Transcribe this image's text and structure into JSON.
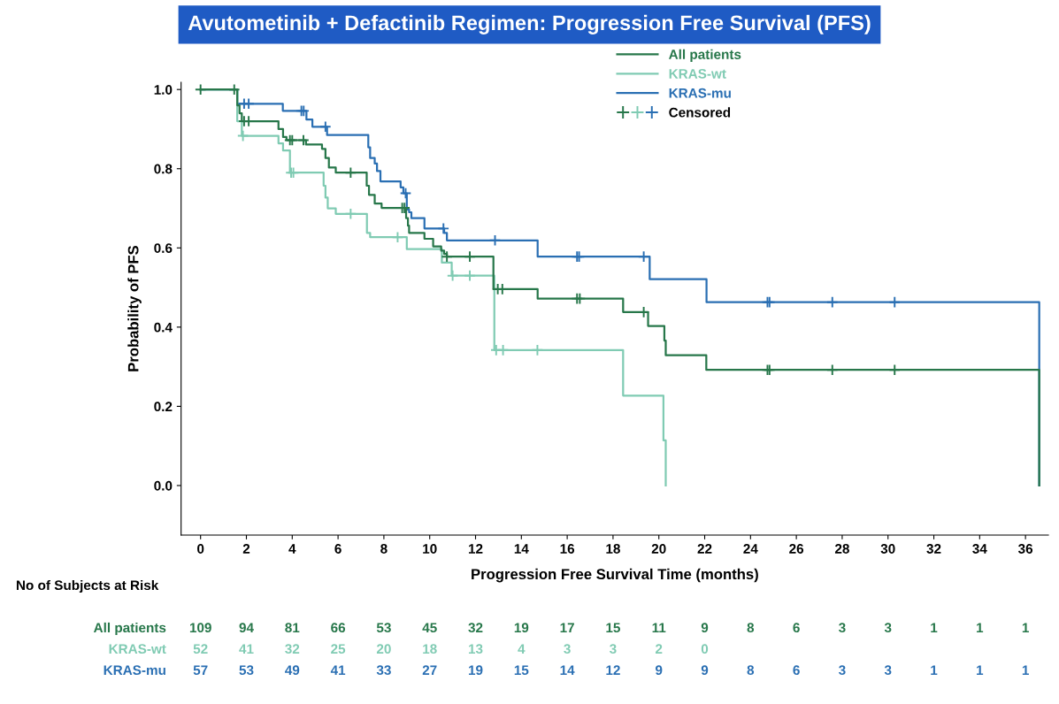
{
  "chart_data": {
    "type": "step",
    "title": "Avutometinib + Defactinib Regimen: Progression Free Survival (PFS)",
    "xlabel": "Progression Free Survival Time (months)",
    "ylabel": "Probability of PFS",
    "xlim": [
      -0.85,
      37
    ],
    "ylim": [
      -0.125,
      1.018
    ],
    "xticks": [
      0,
      2,
      4,
      6,
      8,
      10,
      12,
      14,
      16,
      18,
      20,
      22,
      24,
      26,
      28,
      30,
      32,
      34,
      36
    ],
    "yticks": [
      {
        "value": 0,
        "label": "0.0"
      },
      {
        "value": 0.2,
        "label": "0.2"
      },
      {
        "value": 0.4,
        "label": "0.4"
      },
      {
        "value": 0.6,
        "label": "0.6"
      },
      {
        "value": 0.8,
        "label": "0.8"
      },
      {
        "value": 1,
        "label": "1.0"
      }
    ],
    "grid": false,
    "legend": "top right",
    "marker": "none",
    "line_style": "solid",
    "series": [
      {
        "name": "All patients",
        "color": "#27774a",
        "x": [
          0,
          1.6,
          1.7,
          1.8,
          3.4,
          3.6,
          3.75,
          4.6,
          5.3,
          5.45,
          5.6,
          5.9,
          7.25,
          7.35,
          7.6,
          7.9,
          8.97,
          9.05,
          9.1,
          9.77,
          10.15,
          10.5,
          10.63,
          10.75,
          12.78,
          14.71,
          18.44,
          19.53,
          20.24,
          20.3,
          22.07,
          36.6
        ],
        "values": [
          1,
          0.96,
          0.94,
          0.92,
          0.9,
          0.88,
          0.872,
          0.861,
          0.85,
          0.827,
          0.803,
          0.79,
          0.757,
          0.734,
          0.712,
          0.701,
          0.675,
          0.656,
          0.638,
          0.623,
          0.604,
          0.593,
          0.585,
          0.578,
          0.496,
          0.472,
          0.438,
          0.403,
          0.366,
          0.329,
          0.292,
          0
        ]
      },
      {
        "name": "KRAS-wt",
        "color": "#80cbb3",
        "x": [
          0,
          1.6,
          1.8,
          3.4,
          3.6,
          3.9,
          5.37,
          5.45,
          5.55,
          5.9,
          7.26,
          7.4,
          9.0,
          10.53,
          10.96,
          12.82,
          18.44,
          20.2,
          20.3
        ],
        "values": [
          1,
          0.92,
          0.883,
          0.864,
          0.846,
          0.79,
          0.757,
          0.727,
          0.7,
          0.686,
          0.638,
          0.627,
          0.597,
          0.563,
          0.53,
          0.342,
          0.227,
          0.114,
          0
        ]
      },
      {
        "name": "KRAS-mu",
        "color": "#2a6fb3",
        "x": [
          0,
          1.6,
          3.59,
          4.62,
          4.88,
          5.52,
          7.32,
          7.4,
          7.6,
          7.7,
          7.85,
          8.73,
          8.85,
          9.0,
          9.1,
          9.2,
          9.77,
          10.63,
          10.75,
          14.71,
          19.6,
          22.08,
          36.6
        ],
        "values": [
          1,
          0.964,
          0.946,
          0.924,
          0.906,
          0.885,
          0.854,
          0.827,
          0.813,
          0.794,
          0.768,
          0.753,
          0.738,
          0.697,
          0.69,
          0.675,
          0.649,
          0.638,
          0.619,
          0.578,
          0.521,
          0.463,
          0
        ]
      },
      {
        "name": "Censored",
        "type": "scatter",
        "marker": "cross",
        "x": [
          0,
          1.47,
          1.9,
          2.1,
          3.9,
          4.0,
          4.49,
          6.55,
          8.8,
          8.9,
          10.75,
          11.75,
          12.97,
          13.17,
          16.43,
          16.55,
          19.34,
          24.74,
          24.83,
          27.57,
          30.29,
          1.85,
          3.95,
          4.05,
          6.55,
          8.6,
          11.0,
          11.75,
          12.9,
          13.2,
          14.7,
          1.9,
          2.1,
          4.4,
          4.5,
          5.45,
          8.95,
          10.6,
          12.85,
          16.43,
          16.52,
          19.34,
          24.74,
          24.83,
          27.57,
          30.29
        ],
        "values": [
          1,
          1,
          0.92,
          0.92,
          0.872,
          0.872,
          0.872,
          0.79,
          0.701,
          0.701,
          0.578,
          0.578,
          0.496,
          0.496,
          0.472,
          0.472,
          0.438,
          0.292,
          0.292,
          0.292,
          0.292,
          0.883,
          0.79,
          0.79,
          0.686,
          0.627,
          0.53,
          0.53,
          0.342,
          0.342,
          0.342,
          0.964,
          0.964,
          0.946,
          0.946,
          0.906,
          0.738,
          0.649,
          0.619,
          0.578,
          0.578,
          0.578,
          0.463,
          0.463,
          0.463,
          0.463
        ],
        "colors": [
          "#27774a",
          "#27774a",
          "#27774a",
          "#27774a",
          "#27774a",
          "#27774a",
          "#27774a",
          "#27774a",
          "#27774a",
          "#27774a",
          "#27774a",
          "#27774a",
          "#27774a",
          "#27774a",
          "#27774a",
          "#27774a",
          "#27774a",
          "#27774a",
          "#27774a",
          "#27774a",
          "#27774a",
          "#80cbb3",
          "#80cbb3",
          "#80cbb3",
          "#80cbb3",
          "#80cbb3",
          "#80cbb3",
          "#80cbb3",
          "#80cbb3",
          "#80cbb3",
          "#80cbb3",
          "#2a6fb3",
          "#2a6fb3",
          "#2a6fb3",
          "#2a6fb3",
          "#2a6fb3",
          "#2a6fb3",
          "#2a6fb3",
          "#2a6fb3",
          "#2a6fb3",
          "#2a6fb3",
          "#2a6fb3",
          "#2a6fb3",
          "#2a6fb3",
          "#2a6fb3",
          "#2a6fb3"
        ]
      }
    ],
    "annotations": [
      "No of Subjects at Risk",
      "All patients",
      "109 94 81 66 53 45 32 19 17 15 11 9 8 6 3 3 1 1 1",
      "KRAS-wt",
      "52 41 32 25 20 18 13 4 3 3 2 0",
      "KRAS-mu",
      "57 53 49 41 33 27 19 15 14 12 9 9 8 6 3 3 1 1 1"
    ]
  }
}
